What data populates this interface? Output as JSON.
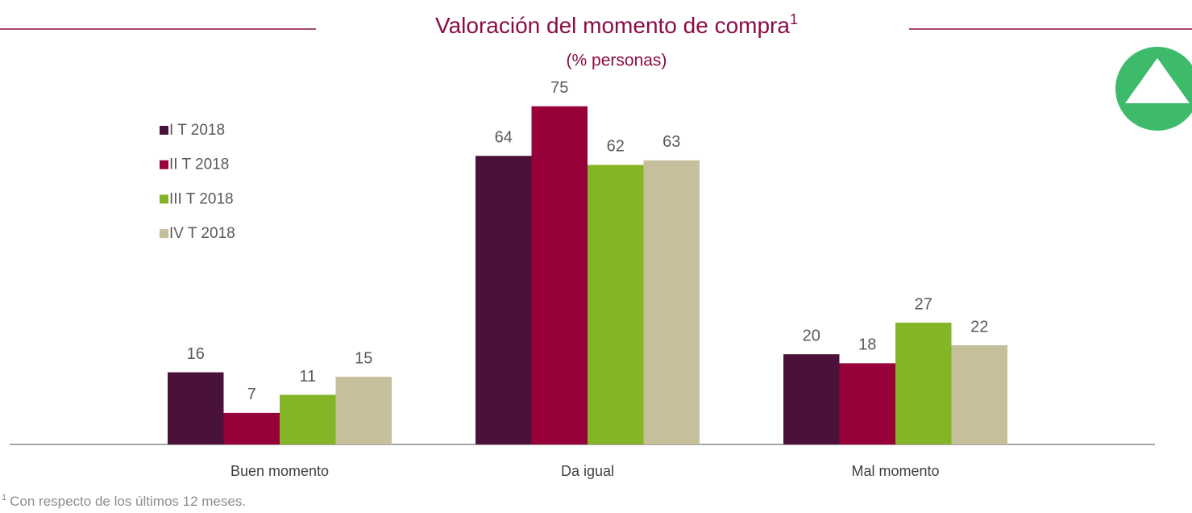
{
  "chart_data": {
    "type": "bar",
    "title": "Valoración del momento de compra",
    "title_superscript": "1",
    "subtitle": "(% personas)",
    "categories": [
      "Buen momento",
      "Da igual",
      "Mal momento"
    ],
    "series": [
      {
        "name": "I T 2018",
        "color": "#4b1239",
        "values": [
          16,
          64,
          20
        ]
      },
      {
        "name": "II T 2018",
        "color": "#98003a",
        "values": [
          7,
          75,
          18
        ]
      },
      {
        "name": "III T 2018",
        "color": "#84b526",
        "values": [
          11,
          62,
          27
        ]
      },
      {
        "name": "IV T 2018",
        "color": "#c6bf9b",
        "values": [
          15,
          63,
          22
        ]
      }
    ],
    "footnote_marker": "1",
    "footnote": "Con respecto de los últimos 12 meses."
  }
}
